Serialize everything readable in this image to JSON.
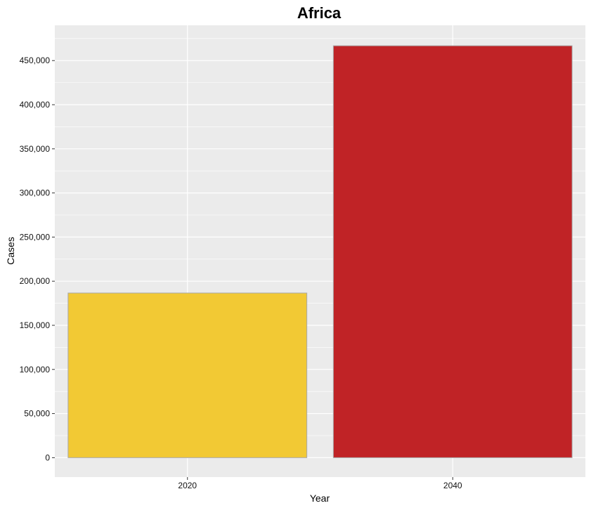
{
  "chart_data": {
    "type": "bar",
    "title": "Africa",
    "xlabel": "Year",
    "ylabel": "Cases",
    "categories": [
      "2020",
      "2040"
    ],
    "values": [
      186600,
      466800
    ],
    "colors": [
      "#f2c934",
      "#c02326"
    ],
    "ylim": [
      -22000,
      490000
    ],
    "yticks": [
      0,
      50000,
      100000,
      150000,
      200000,
      250000,
      300000,
      350000,
      400000,
      450000
    ],
    "ytick_labels": [
      "0",
      "50,000",
      "100,000",
      "150,000",
      "200,000",
      "250,000",
      "300,000",
      "350,000",
      "400,000",
      "450,000"
    ],
    "grid": true,
    "legend": "none",
    "panel_color": "#ebebeb",
    "grid_color": "#ffffff",
    "bar_border_color": "#a8a8a8"
  }
}
